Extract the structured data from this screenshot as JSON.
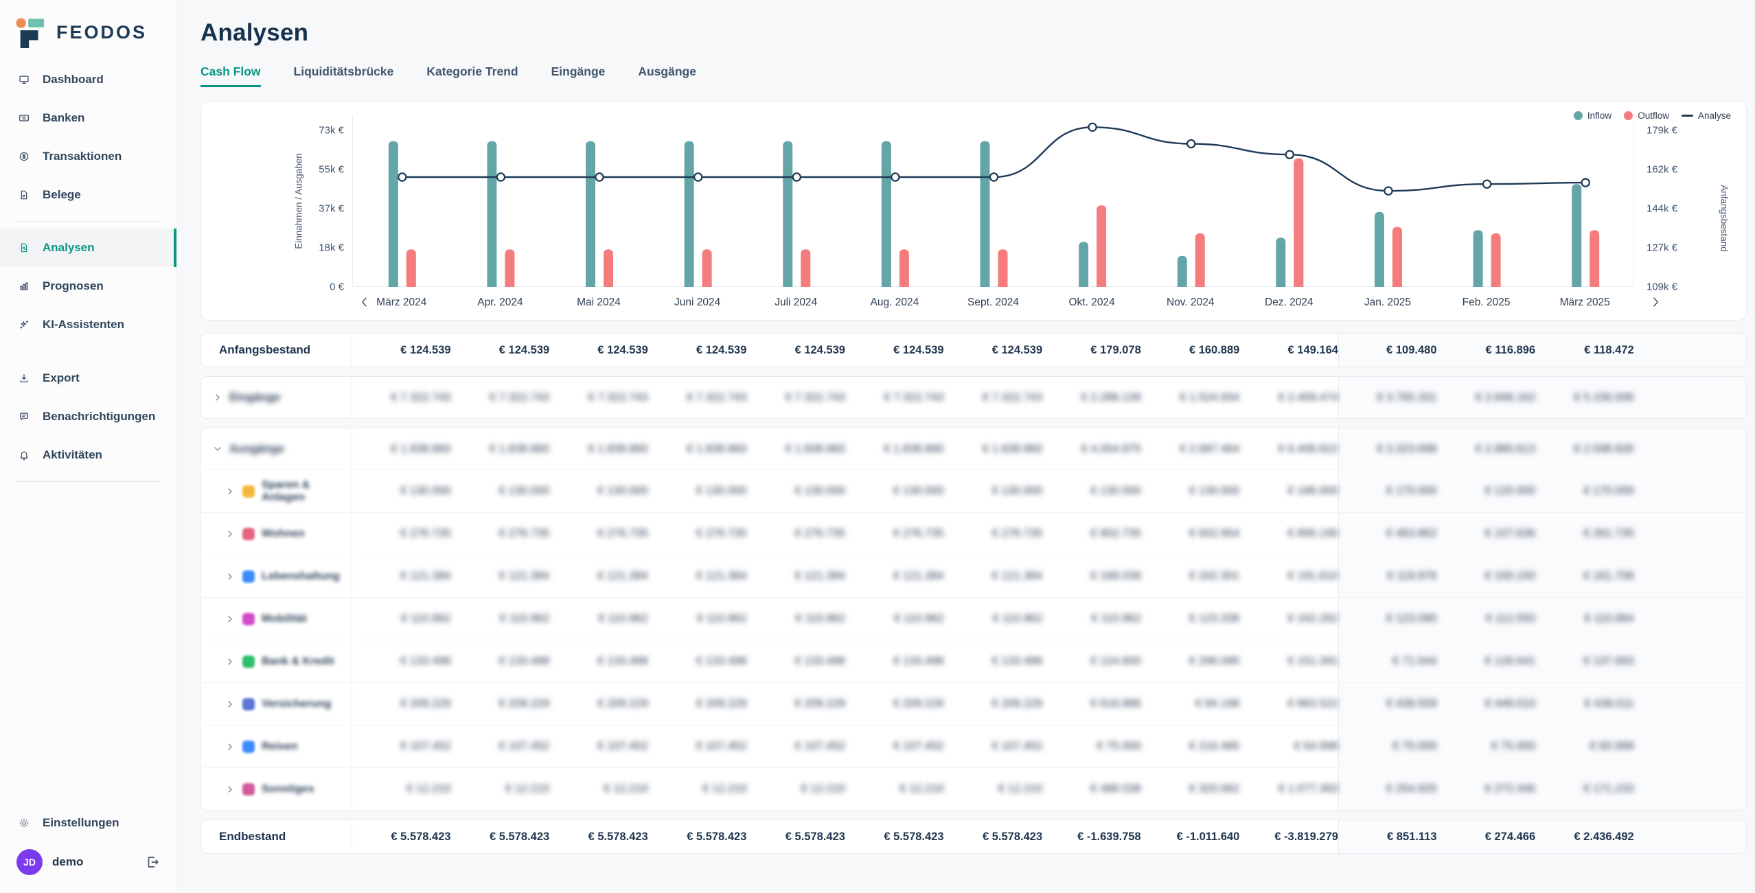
{
  "colors": {
    "accent": "#0d9488",
    "inflow": "#64a5a8",
    "outflow": "#f47c7c",
    "line": "#1e3a56",
    "avatar": "#7c3aed"
  },
  "sidebar": {
    "logo_text": "FEODOS",
    "nav_main": [
      {
        "id": "dashboard",
        "label": "Dashboard",
        "icon": "monitor",
        "active": false
      },
      {
        "id": "banken",
        "label": "Banken",
        "icon": "banknote",
        "active": false
      },
      {
        "id": "transaktionen",
        "label": "Transaktionen",
        "icon": "dollar-circle",
        "active": false
      },
      {
        "id": "belege",
        "label": "Belege",
        "icon": "file",
        "active": false
      }
    ],
    "nav_analyse": [
      {
        "id": "analysen",
        "label": "Analysen",
        "icon": "file-search",
        "active": true
      },
      {
        "id": "prognosen",
        "label": "Prognosen",
        "icon": "bar-chart",
        "active": false
      },
      {
        "id": "ki-assistenten",
        "label": "KI-Assistenten",
        "icon": "sparkles",
        "active": false
      }
    ],
    "nav_tools": [
      {
        "id": "export",
        "label": "Export",
        "icon": "download",
        "active": false
      },
      {
        "id": "benachrichtigungen",
        "label": "Benachrichtigungen",
        "icon": "message",
        "active": false
      },
      {
        "id": "aktivitaeten",
        "label": "Aktivitäten",
        "icon": "bell",
        "active": false
      }
    ],
    "settings_label": "Einstellungen",
    "user": {
      "initials": "JD",
      "name": "demo"
    }
  },
  "header": {
    "title": "Analysen",
    "tabs": [
      {
        "label": "Cash Flow",
        "active": true
      },
      {
        "label": "Liquiditätsbrücke",
        "active": false
      },
      {
        "label": "Kategorie Trend",
        "active": false
      },
      {
        "label": "Eingänge",
        "active": false
      },
      {
        "label": "Ausgänge",
        "active": false
      }
    ]
  },
  "chart_data": {
    "type": "bar+line",
    "categories": [
      "März 2024",
      "Apr. 2024",
      "Mai 2024",
      "Juni 2024",
      "Juli 2024",
      "Aug. 2024",
      "Sept. 2024",
      "Okt. 2024",
      "Nov. 2024",
      "Dez. 2024",
      "Jan. 2025",
      "Feb. 2025",
      "März 2025"
    ],
    "series": [
      {
        "name": "Inflow",
        "type": "bar",
        "values": [
          68000,
          68000,
          68000,
          68000,
          68000,
          68000,
          68000,
          21000,
          14500,
          23000,
          35000,
          26500,
          48000
        ]
      },
      {
        "name": "Outflow",
        "type": "bar",
        "values": [
          17500,
          17500,
          17500,
          17500,
          17500,
          17500,
          17500,
          38000,
          25000,
          60000,
          28000,
          25000,
          26500
        ]
      },
      {
        "name": "Analyse",
        "type": "line",
        "values": [
          124539,
          124539,
          124539,
          124539,
          124539,
          124539,
          124539,
          179078,
          160889,
          149164,
          109480,
          116896,
          118472
        ]
      }
    ],
    "left_axis": {
      "title": "Einnahmen / Ausgaben",
      "ticks": [
        "73k €",
        "55k €",
        "37k €",
        "18k €",
        "0 €"
      ],
      "range": [
        0,
        73000
      ]
    },
    "right_axis": {
      "title": "Anfangsbestand",
      "ticks": [
        "179k €",
        "162k €",
        "144k €",
        "127k €",
        "109k €"
      ],
      "range": [
        109000,
        179000
      ]
    },
    "legend": [
      "Inflow",
      "Outflow",
      "Analyse"
    ],
    "grid": false,
    "legend_position": "top-right",
    "pagination": {
      "prev": "‹",
      "next": "›"
    }
  },
  "table": {
    "forecast_start_col": 10,
    "rows": [
      {
        "card": "opening",
        "id": "anfangsbestand",
        "type": "summary",
        "label": "Anfangsbestand",
        "blurred": false,
        "values": [
          "€ 124.539",
          "€ 124.539",
          "€ 124.539",
          "€ 124.539",
          "€ 124.539",
          "€ 124.539",
          "€ 124.539",
          "€ 179.078",
          "€ 160.889",
          "€ 149.164",
          "€ 109.480",
          "€ 116.896",
          "€ 118.472"
        ]
      },
      {
        "card": "in",
        "id": "eingaenge",
        "type": "group",
        "label": "Eingänge",
        "expanded": false,
        "blurred": true,
        "values": [
          "€ 7.322.743",
          "€ 7.322.743",
          "€ 7.322.743",
          "€ 7.322.743",
          "€ 7.322.743",
          "€ 7.322.743",
          "€ 7.322.743",
          "€ 2.286.139",
          "€ 1.524.934",
          "€ 2.459.474",
          "€ 3.765.331",
          "€ 2.848.162",
          "€ 5.156.006"
        ]
      },
      {
        "card": "out",
        "id": "ausgaenge",
        "type": "group",
        "label": "Ausgänge",
        "expanded": true,
        "blurred": true,
        "values": [
          "€ 1.838.860",
          "€ 1.838.860",
          "€ 1.838.860",
          "€ 1.838.860",
          "€ 1.838.860",
          "€ 1.838.860",
          "€ 1.838.860",
          "€ 4.054.975",
          "€ 2.687.464",
          "€ 6.406.622",
          "€ 3.323.698",
          "€ 2.980.613",
          "€ 2.598.926"
        ]
      },
      {
        "card": "out",
        "id": "sparen-anlagen",
        "type": "category",
        "label": "Sparen & Anlagen",
        "icon_color": "#f6b73c",
        "blurred": true,
        "values": [
          "€ 130.000",
          "€ 130.000",
          "€ 130.000",
          "€ 130.000",
          "€ 130.000",
          "€ 130.000",
          "€ 130.000",
          "€ 130.000",
          "€ 130.000",
          "€ 186.000",
          "€ 170.000",
          "€ 120.000",
          "€ 170.000"
        ]
      },
      {
        "card": "out",
        "id": "wohnen",
        "type": "category",
        "label": "Wohnen",
        "icon_color": "#e4647e",
        "blurred": true,
        "values": [
          "€ 276.735",
          "€ 276.735",
          "€ 276.735",
          "€ 276.735",
          "€ 276.735",
          "€ 276.735",
          "€ 276.735",
          "€ 902.735",
          "€ 602.954",
          "€ 895.190",
          "€ 463.862",
          "€ 107.636",
          "€ 261.735"
        ]
      },
      {
        "card": "out",
        "id": "lebenshaltung",
        "type": "category",
        "label": "Lebenshaltung",
        "icon_color": "#3d8bfd",
        "blurred": true,
        "values": [
          "€ 121.384",
          "€ 121.384",
          "€ 121.384",
          "€ 121.384",
          "€ 121.384",
          "€ 121.384",
          "€ 121.384",
          "€ 168.039",
          "€ 202.301",
          "€ 191.610",
          "€ 119.976",
          "€ 100.150",
          "€ 161.708"
        ]
      },
      {
        "card": "out",
        "id": "mobilitaet",
        "type": "category",
        "label": "Mobilität",
        "icon_color": "#d24bc8",
        "blurred": true,
        "values": [
          "€ 110.962",
          "€ 110.962",
          "€ 110.962",
          "€ 110.962",
          "€ 110.962",
          "€ 110.962",
          "€ 110.962",
          "€ 110.962",
          "€ 123.338",
          "€ 162.262",
          "€ 123.090",
          "€ 112.550",
          "€ 110.964"
        ]
      },
      {
        "card": "out",
        "id": "bank-kredit",
        "type": "category",
        "label": "Bank & Kredit",
        "icon_color": "#2fbe69",
        "blurred": true,
        "values": [
          "€ 133.498",
          "€ 133.498",
          "€ 133.498",
          "€ 133.498",
          "€ 133.498",
          "€ 133.498",
          "€ 133.498",
          "€ 124.600",
          "€ 296.090",
          "€ 151.391",
          "€ 71.544",
          "€ 126.641",
          "€ 137.693"
        ]
      },
      {
        "card": "out",
        "id": "versicherung",
        "type": "category",
        "label": "Versicherung",
        "icon_color": "#5b76d7",
        "blurred": true,
        "values": [
          "€ 209.229",
          "€ 209.229",
          "€ 209.229",
          "€ 209.229",
          "€ 209.229",
          "€ 209.229",
          "€ 209.229",
          "€ 616.886",
          "€ 84.198",
          "€ 863.522",
          "€ 438.559",
          "€ 448.010",
          "€ 438.011"
        ]
      },
      {
        "card": "out",
        "id": "reisen",
        "type": "category",
        "label": "Reisen",
        "icon_color": "#3d8bfd",
        "blurred": true,
        "values": [
          "€ 107.452",
          "€ 107.452",
          "€ 107.452",
          "€ 107.452",
          "€ 107.452",
          "€ 107.452",
          "€ 107.452",
          "€ 75.000",
          "€ 216.485",
          "€ 64.998",
          "€ 75.000",
          "€ 75.000",
          "€ 60.998"
        ]
      },
      {
        "card": "out",
        "id": "sonstiges",
        "type": "category",
        "label": "Sonstiges",
        "icon_color": "#d15b9b",
        "blurred": true,
        "values": [
          "€ 12.210",
          "€ 12.210",
          "€ 12.210",
          "€ 12.210",
          "€ 12.210",
          "€ 12.210",
          "€ 12.210",
          "€ 488.538",
          "€ 320.062",
          "€ 1.077.363",
          "€ 254.925",
          "€ 272.346",
          "€ 171.233"
        ]
      },
      {
        "card": "closing",
        "id": "endbestand",
        "type": "summary",
        "label": "Endbestand",
        "blurred": false,
        "values": [
          "€ 5.578.423",
          "€ 5.578.423",
          "€ 5.578.423",
          "€ 5.578.423",
          "€ 5.578.423",
          "€ 5.578.423",
          "€ 5.578.423",
          "€ -1.639.758",
          "€ -1.011.640",
          "€ -3.819.279",
          "€ 851.113",
          "€ 274.466",
          "€ 2.436.492"
        ]
      }
    ]
  }
}
